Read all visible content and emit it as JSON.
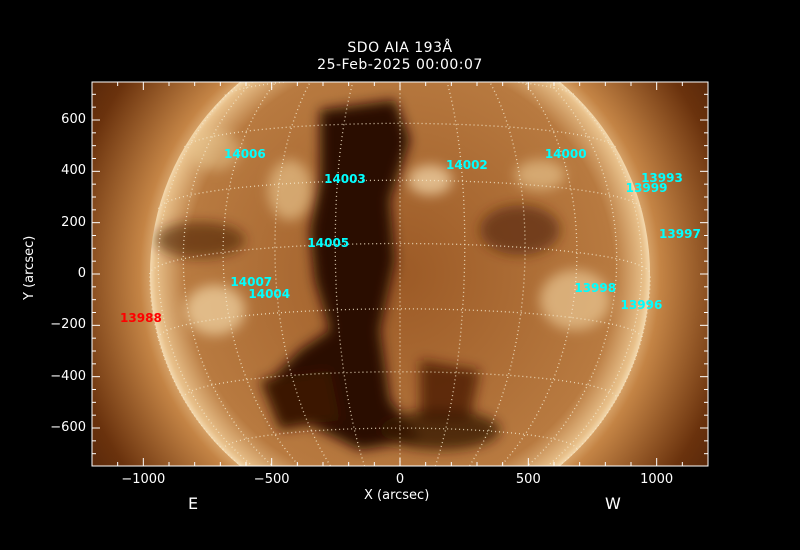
{
  "title": "SDO AIA 193Å",
  "subtitle": "25-Feb-2025 00:00:07",
  "xlabel": "X (arcsec)",
  "ylabel": "Y (arcsec)",
  "east_label": "E",
  "west_label": "W",
  "xlim": [
    -1200,
    1200
  ],
  "ylim": [
    -748,
    748
  ],
  "xticks": [
    -1000,
    -500,
    0,
    500,
    1000
  ],
  "yticks": [
    -600,
    -400,
    -200,
    0,
    200,
    400,
    600
  ],
  "tick_labels": {
    "x": [
      "−1000",
      "−500",
      "0",
      "500",
      "1000"
    ],
    "y": [
      "−600",
      "−400",
      "−200",
      "0",
      "200",
      "400",
      "600"
    ]
  },
  "solar_radius_arcsec": 975,
  "grid_spacing_deg": 15,
  "colors": {
    "disk": "#c8894a",
    "coronal_hole": "#2a0c02",
    "label": "#00ffff",
    "label_behind_limb": "#ff0000",
    "grid": "#f5e6c8"
  },
  "active_regions": [
    {
      "id": "14006",
      "x": -600,
      "y": 465,
      "color": "#00ffff"
    },
    {
      "id": "14003",
      "x": -210,
      "y": 365,
      "color": "#00ffff"
    },
    {
      "id": "14002",
      "x": 265,
      "y": 420,
      "color": "#00ffff"
    },
    {
      "id": "14000",
      "x": 650,
      "y": 465,
      "color": "#00ffff"
    },
    {
      "id": "13993",
      "x": 1025,
      "y": 370,
      "color": "#00ffff"
    },
    {
      "id": "13999",
      "x": 965,
      "y": 330,
      "color": "#00ffff"
    },
    {
      "id": "13997",
      "x": 1095,
      "y": 150,
      "color": "#00ffff"
    },
    {
      "id": "14005",
      "x": -275,
      "y": 115,
      "color": "#00ffff"
    },
    {
      "id": "14007",
      "x": -575,
      "y": -35,
      "color": "#00ffff"
    },
    {
      "id": "14004",
      "x": -505,
      "y": -80,
      "color": "#00ffff"
    },
    {
      "id": "13998",
      "x": 765,
      "y": -60,
      "color": "#00ffff"
    },
    {
      "id": "13996",
      "x": 945,
      "y": -125,
      "color": "#00ffff"
    },
    {
      "id": "13988",
      "x": -1005,
      "y": -175,
      "color": "#ff0000"
    }
  ]
}
